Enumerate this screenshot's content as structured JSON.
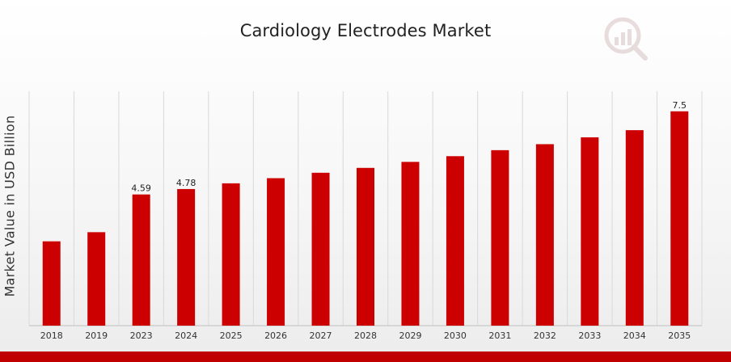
{
  "chart_data": {
    "type": "bar",
    "title": "Cardiology Electrodes Market",
    "xlabel": "",
    "ylabel": "Market Value in USD Billion",
    "categories": [
      "2018",
      "2019",
      "2023",
      "2024",
      "2025",
      "2026",
      "2027",
      "2028",
      "2029",
      "2030",
      "2031",
      "2032",
      "2033",
      "2034",
      "2035"
    ],
    "values": [
      2.95,
      3.27,
      4.59,
      4.78,
      4.98,
      5.16,
      5.35,
      5.52,
      5.73,
      5.93,
      6.14,
      6.35,
      6.59,
      6.84,
      7.5
    ],
    "data_labels": [
      "",
      "",
      "4.59",
      "4.78",
      "",
      "",
      "",
      "",
      "",
      "",
      "",
      "",
      "",
      "",
      "7.5"
    ],
    "ylim": [
      0,
      8.2
    ],
    "grid": "vertical",
    "legend": "none",
    "colors": {
      "bar": "#cc0000",
      "accent": "#c00000",
      "grid": "#d9d9d9"
    }
  },
  "branding": {
    "logo_icon": "analytics-magnifier-icon"
  }
}
